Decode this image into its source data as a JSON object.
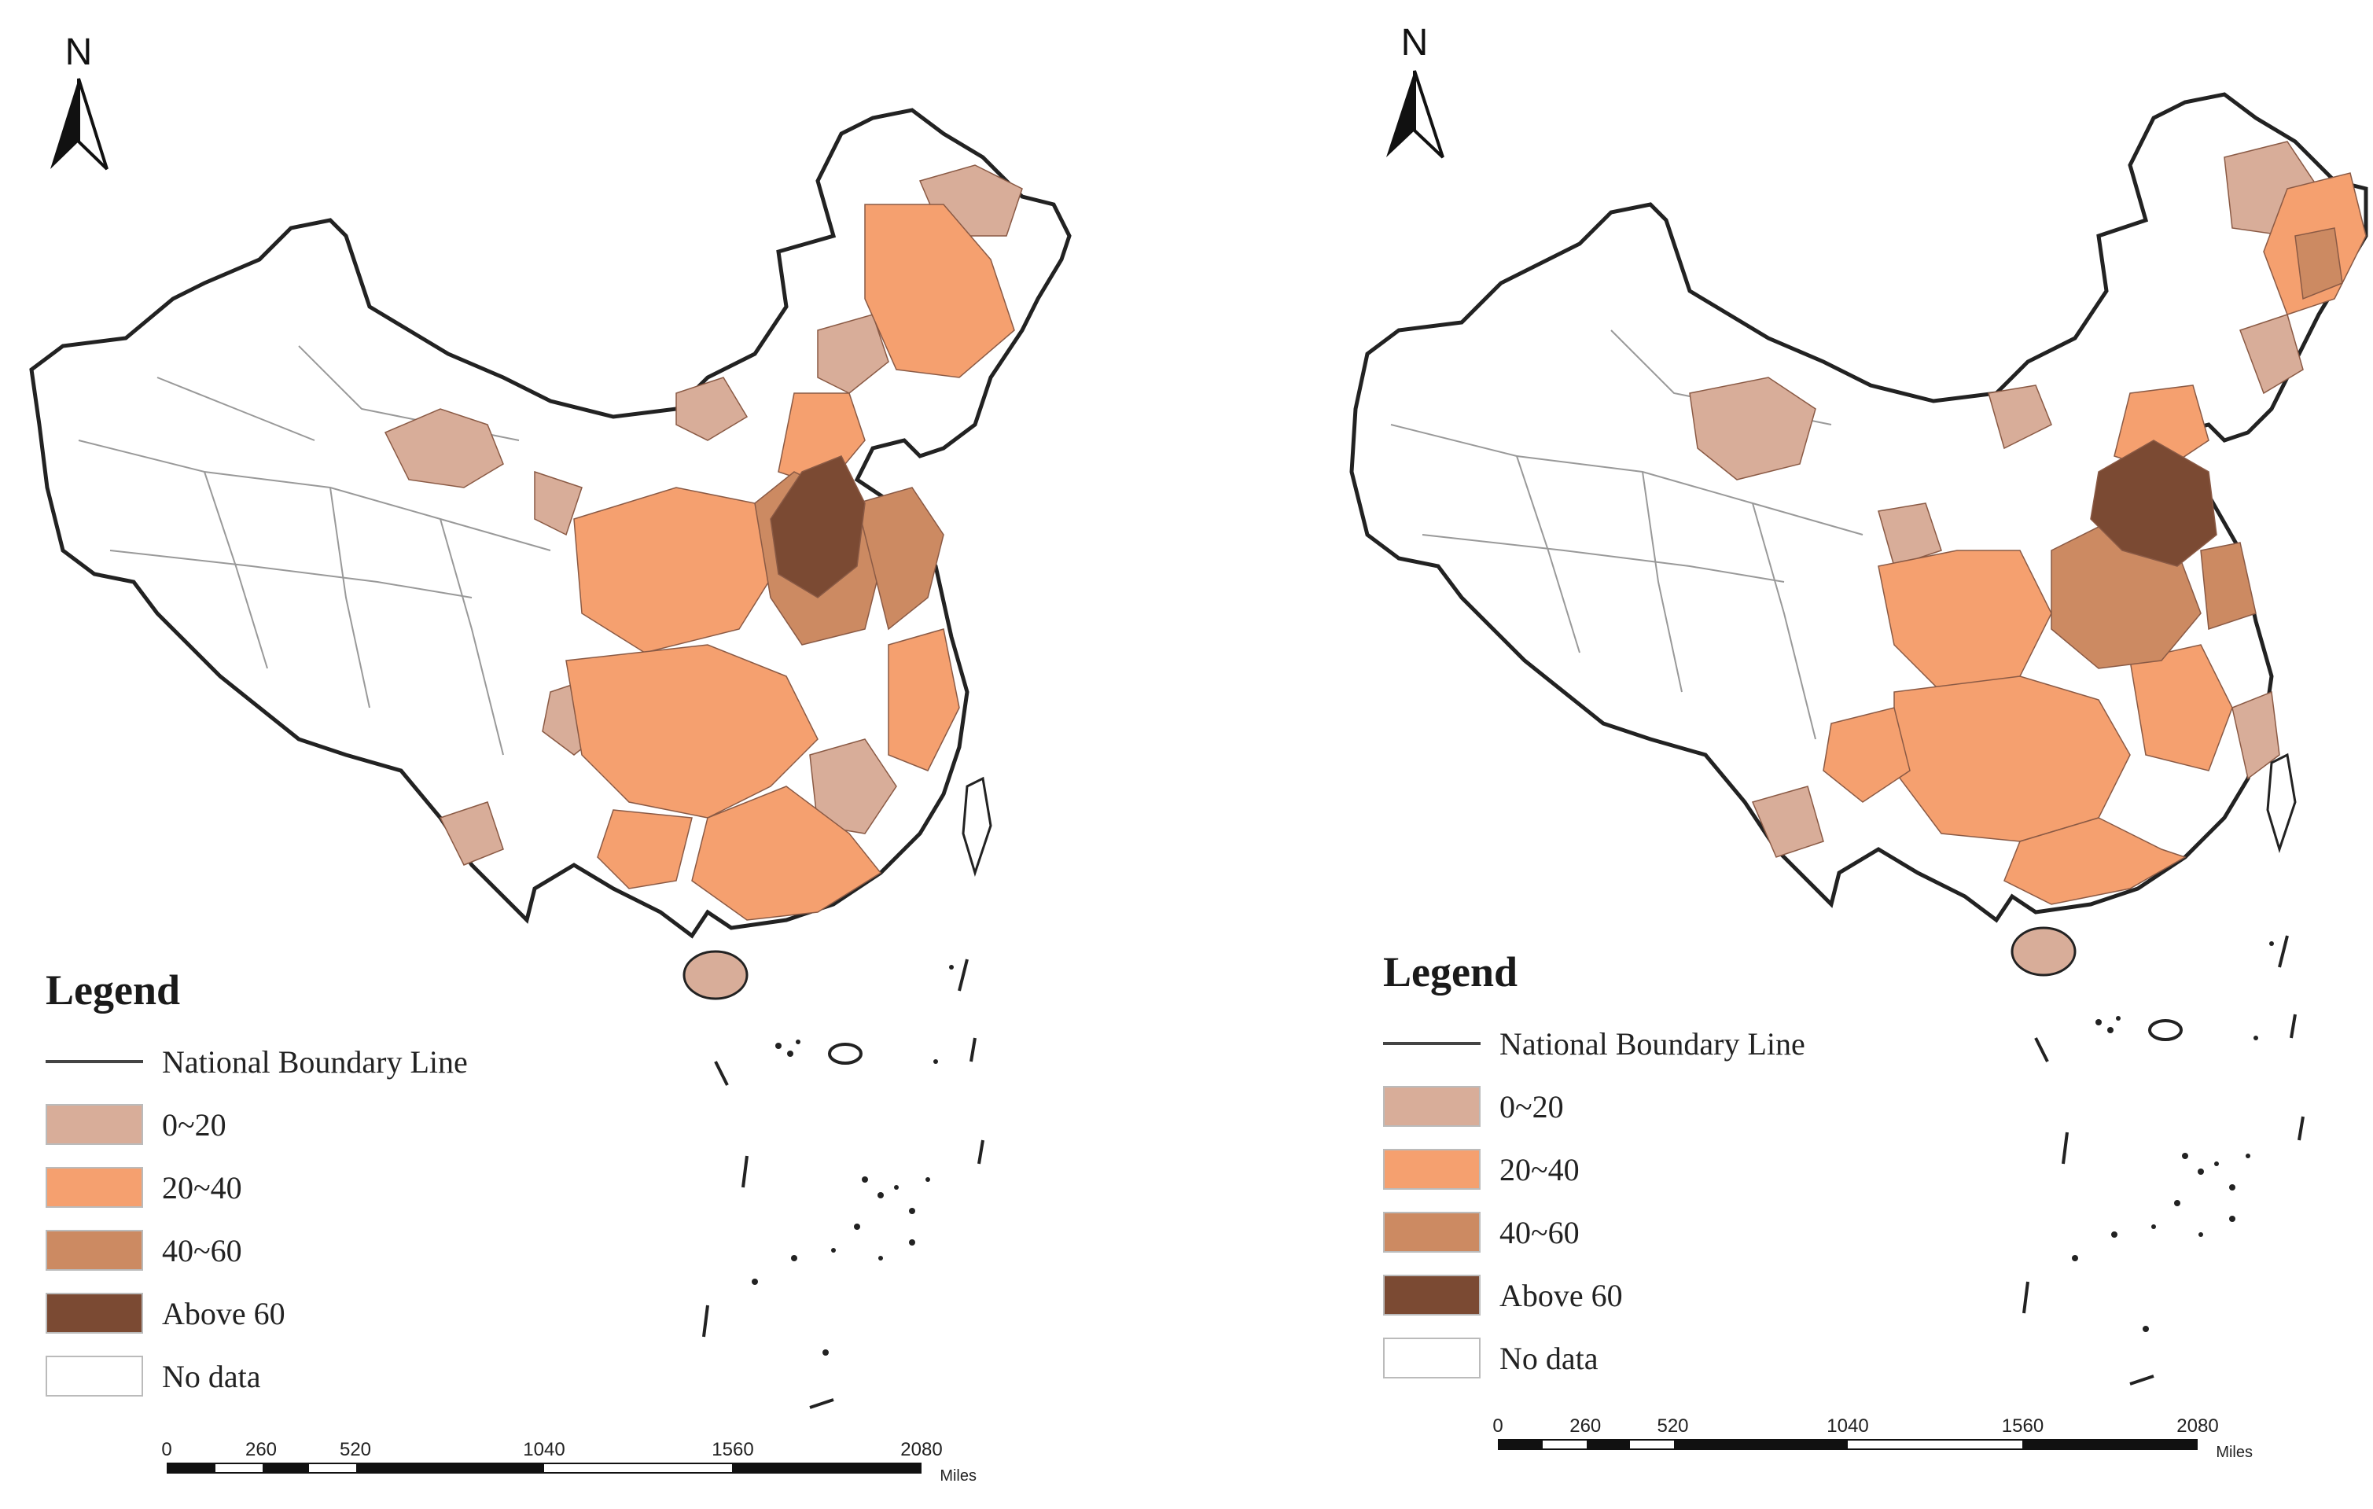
{
  "maps": [
    {
      "id": "left",
      "north_label": "N",
      "legend": {
        "title": "Legend",
        "boundary_label": "National Boundary Line",
        "classes": [
          {
            "label": "0~20",
            "color": "#d8ad99"
          },
          {
            "label": "20~40",
            "color": "#f5a06f"
          },
          {
            "label": "40~60",
            "color": "#cc8a62"
          },
          {
            "label": "Above 60",
            "color": "#7b4a33"
          },
          {
            "label": "No data",
            "color": "#ffffff"
          }
        ]
      },
      "scale": {
        "ticks": [
          "0",
          "260",
          "520",
          "1040",
          "1560",
          "2080"
        ],
        "unit": "Miles"
      }
    },
    {
      "id": "right",
      "north_label": "N",
      "legend": {
        "title": "Legend",
        "boundary_label": "National Boundary Line",
        "classes": [
          {
            "label": "0~20",
            "color": "#d8ad99"
          },
          {
            "label": "20~40",
            "color": "#f5a06f"
          },
          {
            "label": "40~60",
            "color": "#cc8a62"
          },
          {
            "label": "Above 60",
            "color": "#7b4a33"
          },
          {
            "label": "No data",
            "color": "#ffffff"
          }
        ]
      },
      "scale": {
        "ticks": [
          "0",
          "260",
          "520",
          "1040",
          "1560",
          "2080"
        ],
        "unit": "Miles"
      }
    }
  ]
}
